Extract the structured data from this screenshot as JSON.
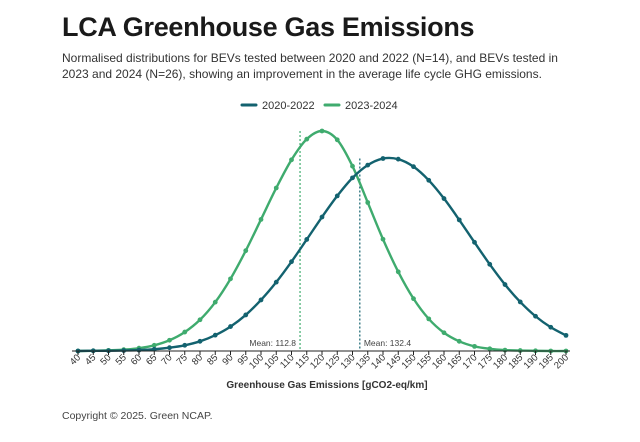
{
  "title": "LCA Greenhouse Gas Emissions",
  "subtitle": "Normalised distributions for BEVs tested between 2020 and 2022 (N=14), and BEVs tested in 2023 and 2024 (N=26), showing an improvement in the average life cycle GHG emissions.",
  "footer": "Copyright © 2025. Green NCAP.",
  "chart_data": {
    "type": "line",
    "title": "LCA Greenhouse Gas Emissions",
    "xlabel": "Greenhouse Gas Emissions [gCO2-eq/km]",
    "ylabel": "",
    "xlim": [
      40,
      200
    ],
    "ylim": [
      0,
      1
    ],
    "grid": false,
    "legend_position": "top-center",
    "x": [
      40,
      45,
      50,
      55,
      60,
      65,
      70,
      75,
      80,
      85,
      90,
      95,
      100,
      105,
      110,
      115,
      120,
      125,
      130,
      135,
      140,
      145,
      150,
      155,
      160,
      165,
      170,
      175,
      180,
      185,
      190,
      195,
      200
    ],
    "x_tick_labels": [
      "40",
      "45",
      "50",
      "55",
      "60",
      "65",
      "70",
      "75",
      "80",
      "85",
      "90",
      "95",
      "100",
      "105",
      "110",
      "115",
      "120",
      "125",
      "130",
      "135",
      "140",
      "145",
      "150",
      "155",
      "160",
      "165",
      "170",
      "175",
      "180",
      "185",
      "190",
      "195",
      "200"
    ],
    "series": [
      {
        "name": "2020-2022",
        "color": "#13626f",
        "mean": 132.4,
        "mean_label": "Mean: 132.4",
        "values": [
          0.0,
          0.001,
          0.001,
          0.002,
          0.004,
          0.008,
          0.015,
          0.026,
          0.044,
          0.072,
          0.111,
          0.164,
          0.232,
          0.313,
          0.406,
          0.507,
          0.609,
          0.705,
          0.787,
          0.845,
          0.875,
          0.872,
          0.838,
          0.776,
          0.693,
          0.596,
          0.494,
          0.394,
          0.302,
          0.223,
          0.158,
          0.108,
          0.071
        ]
      },
      {
        "name": "2023-2024",
        "color": "#3fab6e",
        "mean": 112.8,
        "mean_label": "Mean: 112.8",
        "values": [
          0.0,
          0.001,
          0.003,
          0.006,
          0.013,
          0.026,
          0.049,
          0.086,
          0.142,
          0.222,
          0.328,
          0.456,
          0.598,
          0.741,
          0.869,
          0.963,
          1.0,
          0.96,
          0.84,
          0.675,
          0.508,
          0.36,
          0.238,
          0.146,
          0.083,
          0.044,
          0.021,
          0.01,
          0.004,
          0.002,
          0.001,
          0.0,
          0.0
        ]
      }
    ]
  }
}
